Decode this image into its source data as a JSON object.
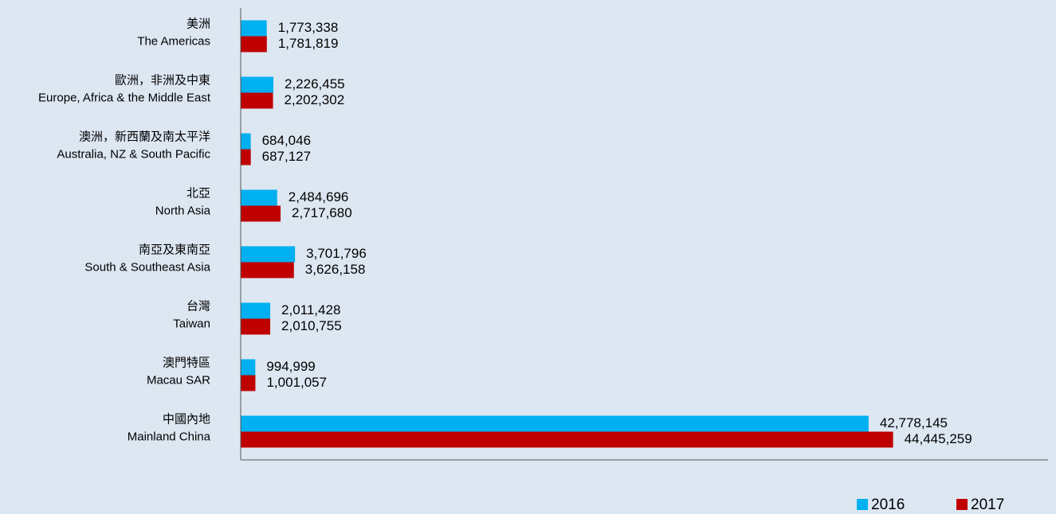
{
  "chart_data": {
    "type": "bar",
    "orientation": "horizontal",
    "categories": [
      [
        "美洲",
        "The Americas"
      ],
      [
        "歐洲，非洲及中東",
        "Europe, Africa & the Middle East"
      ],
      [
        "澳洲，新西蘭及南太平洋",
        "Australia, NZ & South Pacific"
      ],
      [
        "北亞",
        "North Asia"
      ],
      [
        "南亞及東南亞",
        "South & Southeast Asia"
      ],
      [
        "台灣",
        "Taiwan"
      ],
      [
        "澳門特區",
        "Macau SAR"
      ],
      [
        "中國內地",
        "Mainland China"
      ]
    ],
    "series": [
      {
        "name": "2016",
        "color": "#00b0f0",
        "values": [
          1773338,
          2226455,
          684046,
          2484696,
          3701796,
          2011428,
          994999,
          42778145
        ],
        "value_labels": [
          "1,773,338",
          "2,226,455",
          "684,046",
          "2,484,696",
          "3,701,796",
          "2,011,428",
          "994,999",
          "42,778,145"
        ]
      },
      {
        "name": "2017",
        "color": "#c00000",
        "values": [
          1781819,
          2202302,
          687127,
          2717680,
          3626158,
          2010755,
          1001057,
          44445259
        ],
        "value_labels": [
          "1,781,819",
          "2,202,302",
          "687,127",
          "2,717,680",
          "3,626,158",
          "2,010,755",
          "1,001,057",
          "44,445,259"
        ]
      }
    ],
    "xlim": [
      0,
      55000000
    ],
    "legend": "bottom-right"
  }
}
